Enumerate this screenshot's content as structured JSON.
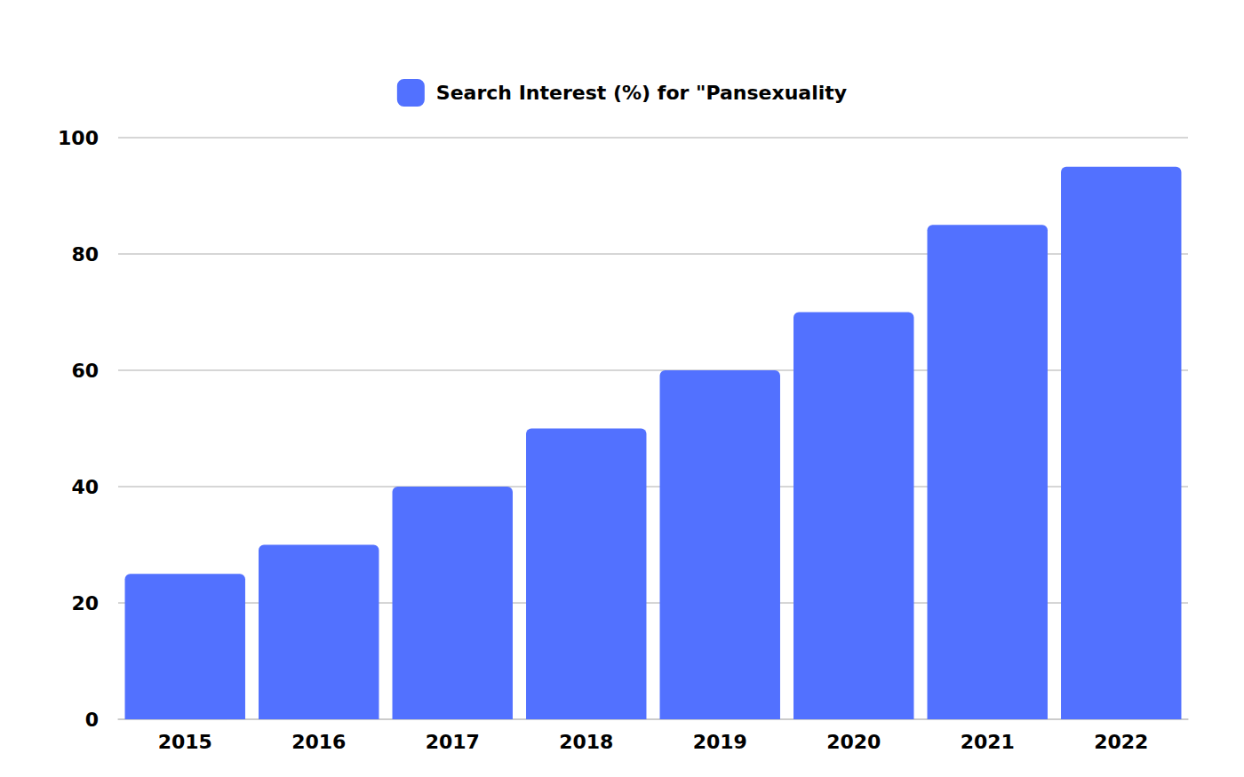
{
  "chart_data": {
    "type": "bar",
    "categories": [
      "2015",
      "2016",
      "2017",
      "2018",
      "2019",
      "2020",
      "2021",
      "2022"
    ],
    "series": [
      {
        "name": "Search Interest (%) for \"Pansexuality",
        "color": "#5271ff",
        "values": [
          25,
          30,
          40,
          50,
          60,
          70,
          85,
          95
        ]
      }
    ],
    "ylim": [
      0,
      100
    ],
    "yticks": [
      0,
      20,
      40,
      60,
      80,
      100
    ],
    "grid": true,
    "legend": "top"
  }
}
